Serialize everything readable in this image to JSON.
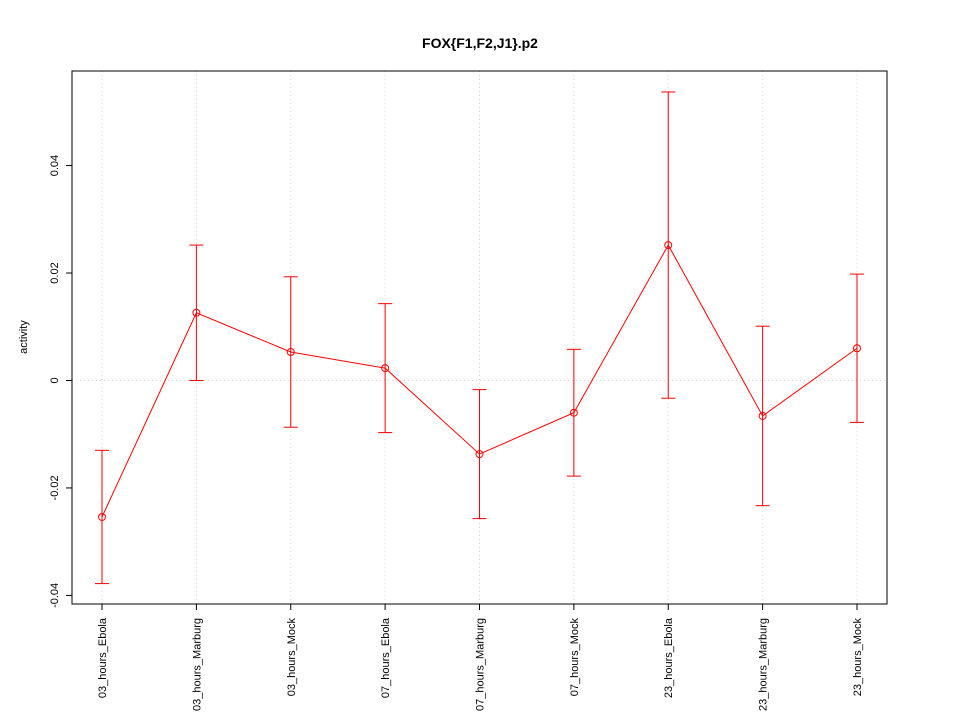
{
  "chart_data": {
    "type": "errorbar-line",
    "title": "FOX{F1,F2,J1}.p2",
    "y_label": "activity",
    "categories": [
      "03_hours_Ebola",
      "03_hours_Marburg",
      "03_hours_Mock",
      "07_hours_Ebola",
      "07_hours_Marburg",
      "07_hours_Mock",
      "23_hours_Ebola",
      "23_hours_Marburg",
      "23_hours_Mock"
    ],
    "series": [
      {
        "name": "activity",
        "color": "#ff0000",
        "values": [
          -0.0254,
          0.0126,
          0.0053,
          0.0023,
          -0.0137,
          -0.006,
          0.0252,
          -0.0066,
          0.006
        ],
        "errors": [
          0.0124,
          0.0126,
          0.014,
          0.012,
          0.012,
          0.0118,
          0.0285,
          0.0167,
          0.0138
        ]
      }
    ],
    "ylim": [
      -0.0416,
      0.0576
    ],
    "yticks": [
      -0.04,
      -0.02,
      0,
      0.02,
      0.04
    ],
    "reference_line": 0,
    "grid": true
  }
}
